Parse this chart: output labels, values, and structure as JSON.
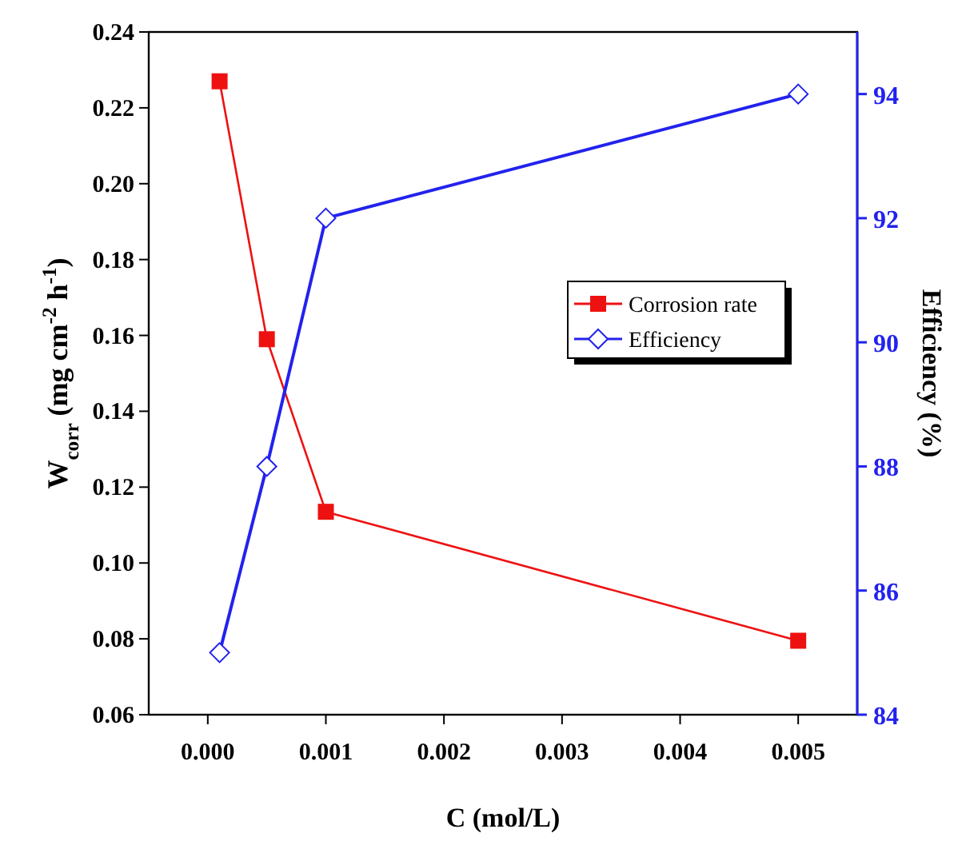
{
  "chart_data": {
    "type": "line",
    "xlabel": "C (mol/L)",
    "ylabel": "W$_{corr}$ (mg cm$^{-2}$ h$^{-1}$)",
    "y2label": "Efficiency (%)",
    "x": [
      0.0001,
      0.0005,
      0.001,
      0.005
    ],
    "xlim": [
      -0.0005,
      0.0055
    ],
    "xticks": [
      {
        "value": 0,
        "label": "0.000"
      },
      {
        "value": 0.001,
        "label": "0.001"
      },
      {
        "value": 0.002,
        "label": "0.002"
      },
      {
        "value": 0.003,
        "label": "0.003"
      },
      {
        "value": 0.004,
        "label": "0.004"
      },
      {
        "value": 0.005,
        "label": "0.005"
      }
    ],
    "ylim": [
      0.06,
      0.24
    ],
    "yticks": [
      {
        "value": 0.06,
        "label": "0.06"
      },
      {
        "value": 0.08,
        "label": "0.08"
      },
      {
        "value": 0.1,
        "label": "0.10"
      },
      {
        "value": 0.12,
        "label": "0.12"
      },
      {
        "value": 0.14,
        "label": "0.14"
      },
      {
        "value": 0.16,
        "label": "0.16"
      },
      {
        "value": 0.18,
        "label": "0.18"
      },
      {
        "value": 0.2,
        "label": "0.20"
      },
      {
        "value": 0.22,
        "label": "0.22"
      },
      {
        "value": 0.24,
        "label": "0.24"
      }
    ],
    "y2lim": [
      84,
      95
    ],
    "y2ticks": [
      84,
      86,
      88,
      90,
      92,
      94
    ],
    "legend": "right",
    "grid": false,
    "series": [
      {
        "name": "Corrosion rate",
        "color": "#ee1111",
        "marker": "square",
        "values": [
          0.227,
          0.159,
          0.1135,
          0.0795
        ]
      },
      {
        "name": "Efficiency",
        "color": "#2222ee",
        "marker": "diamond",
        "axis": "y2",
        "values": [
          85,
          88,
          92,
          94
        ]
      }
    ]
  }
}
